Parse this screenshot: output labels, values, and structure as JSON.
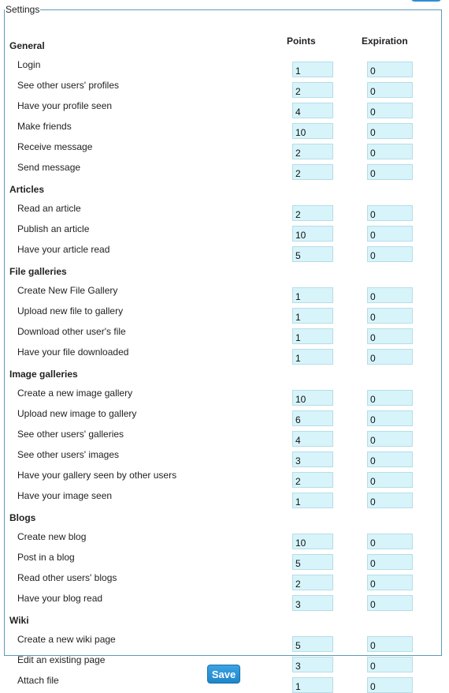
{
  "legend": "Settings",
  "columns": {
    "points": "Points",
    "expiration": "Expiration"
  },
  "sections": [
    {
      "title": "General",
      "rows": [
        {
          "label": "Login",
          "points": "1",
          "expiration": "0"
        },
        {
          "label": "See other users' profiles",
          "points": "2",
          "expiration": "0"
        },
        {
          "label": "Have your profile seen",
          "points": "4",
          "expiration": "0"
        },
        {
          "label": "Make friends",
          "points": "10",
          "expiration": "0"
        },
        {
          "label": "Receive message",
          "points": "2",
          "expiration": "0"
        },
        {
          "label": "Send message",
          "points": "2",
          "expiration": "0"
        }
      ]
    },
    {
      "title": "Articles",
      "rows": [
        {
          "label": "Read an article",
          "points": "2",
          "expiration": "0"
        },
        {
          "label": "Publish an article",
          "points": "10",
          "expiration": "0"
        },
        {
          "label": "Have your article read",
          "points": "5",
          "expiration": "0"
        }
      ]
    },
    {
      "title": "File galleries",
      "rows": [
        {
          "label": "Create New File Gallery",
          "points": "1",
          "expiration": "0"
        },
        {
          "label": "Upload new file to gallery",
          "points": "1",
          "expiration": "0"
        },
        {
          "label": "Download other user's file",
          "points": "1",
          "expiration": "0"
        },
        {
          "label": "Have your file downloaded",
          "points": "1",
          "expiration": "0"
        }
      ]
    },
    {
      "title": "Image galleries",
      "rows": [
        {
          "label": "Create a new image gallery",
          "points": "10",
          "expiration": "0"
        },
        {
          "label": "Upload new image to gallery",
          "points": "6",
          "expiration": "0"
        },
        {
          "label": "See other users' galleries",
          "points": "4",
          "expiration": "0"
        },
        {
          "label": "See other users' images",
          "points": "3",
          "expiration": "0"
        },
        {
          "label": "Have your gallery seen by other users",
          "points": "2",
          "expiration": "0"
        },
        {
          "label": "Have your image seen",
          "points": "1",
          "expiration": "0"
        }
      ]
    },
    {
      "title": "Blogs",
      "rows": [
        {
          "label": "Create new blog",
          "points": "10",
          "expiration": "0"
        },
        {
          "label": "Post in a blog",
          "points": "5",
          "expiration": "0"
        },
        {
          "label": "Read other users' blogs",
          "points": "2",
          "expiration": "0"
        },
        {
          "label": "Have your blog read",
          "points": "3",
          "expiration": "0"
        }
      ]
    },
    {
      "title": "Wiki",
      "rows": [
        {
          "label": "Create a new wiki page",
          "points": "5",
          "expiration": "0"
        },
        {
          "label": "Edit an existing page",
          "points": "3",
          "expiration": "0"
        },
        {
          "label": "Attach file",
          "points": "1",
          "expiration": "0"
        }
      ]
    }
  ],
  "save_label": "Save"
}
